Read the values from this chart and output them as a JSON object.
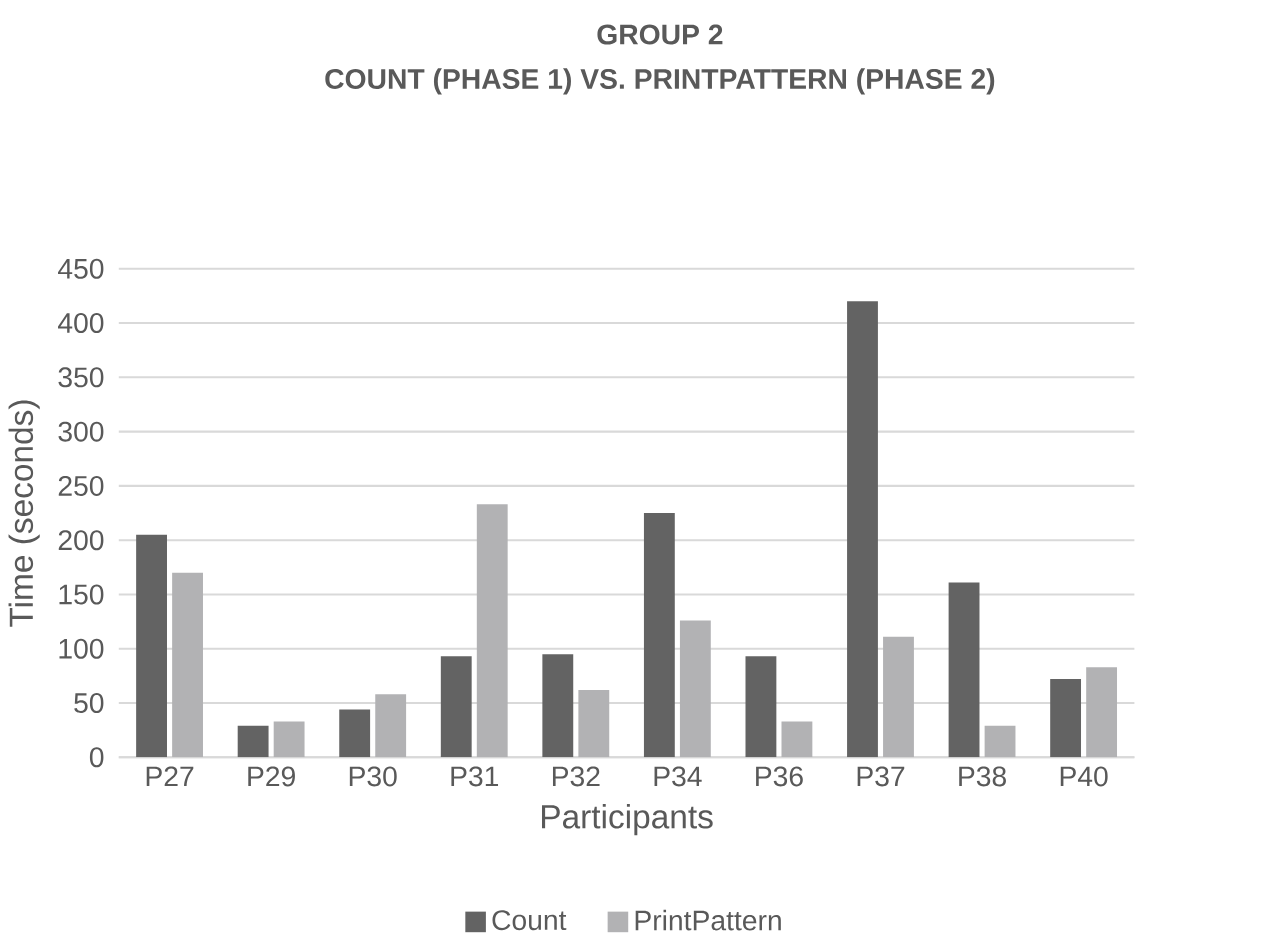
{
  "chart_data": {
    "type": "bar",
    "title": "GROUP 2",
    "subtitle": "COUNT (PHASE 1) VS. PRINTPATTERN (PHASE 2)",
    "xlabel": "Participants",
    "ylabel": "Time (seconds)",
    "categories": [
      "P27",
      "P29",
      "P30",
      "P31",
      "P32",
      "P34",
      "P36",
      "P37",
      "P38",
      "P40"
    ],
    "series": [
      {
        "name": "Count",
        "color": "#636363",
        "values": [
          205,
          29,
          44,
          93,
          95,
          225,
          93,
          420,
          161,
          72
        ]
      },
      {
        "name": "PrintPattern",
        "color": "#b2b2b4",
        "values": [
          170,
          33,
          58,
          233,
          62,
          126,
          33,
          111,
          29,
          83
        ]
      }
    ],
    "ylim": [
      0,
      450
    ],
    "yticks": [
      0,
      50,
      100,
      150,
      200,
      250,
      300,
      350,
      400,
      450
    ],
    "grid": "y",
    "legend": "bottom"
  }
}
